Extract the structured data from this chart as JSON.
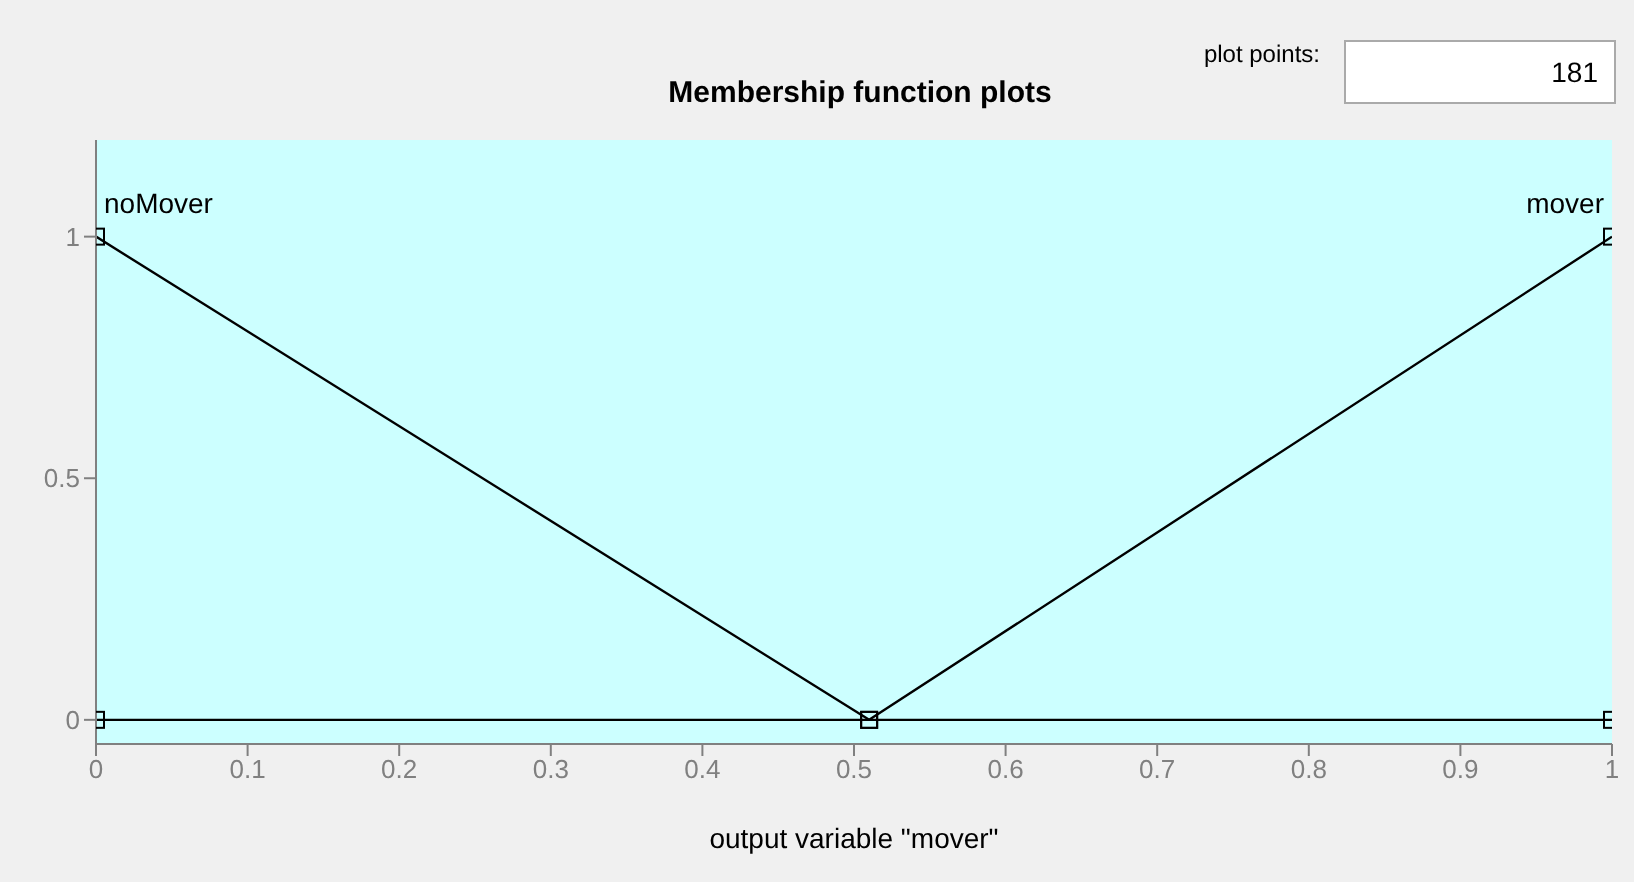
{
  "chart_data": {
    "type": "line",
    "title": "Membership function plots",
    "xlabel": "output variable \"mover\"",
    "annotations": [
      "plot points:",
      "181"
    ],
    "x": [
      0,
      0.51,
      1
    ],
    "series": [
      {
        "name": "noMover",
        "color": "#000000",
        "values": [
          1,
          0,
          0
        ]
      },
      {
        "name": "mover",
        "color": "#000000",
        "values": [
          0,
          0,
          1
        ]
      }
    ],
    "xlim": [
      0,
      1
    ],
    "xticks": [
      0,
      0.1,
      0.2,
      0.3,
      0.4,
      0.5,
      0.6,
      0.7,
      0.8,
      0.9,
      1
    ],
    "ylim": [
      -0.05,
      1.2
    ],
    "yticks": [
      0,
      0.5,
      1
    ],
    "grid": false,
    "legend": false,
    "marker": "square",
    "line_style": "solid"
  }
}
